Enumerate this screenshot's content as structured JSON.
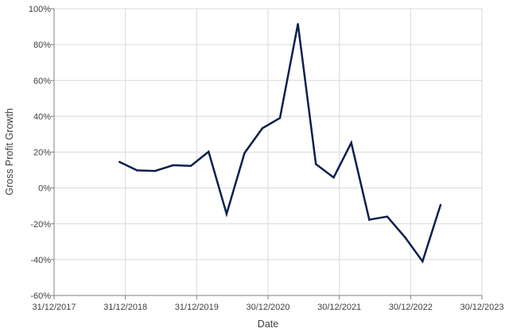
{
  "chart_data": {
    "type": "line",
    "title": "",
    "xlabel": "Date",
    "ylabel": "Gross Profit Growth",
    "xlim": [
      "31/12/2017",
      "30/12/2023"
    ],
    "ylim": [
      -60,
      100
    ],
    "x_ticks": [
      "31/12/2017",
      "31/12/2018",
      "31/12/2019",
      "30/12/2020",
      "30/12/2021",
      "30/12/2022",
      "30/12/2023"
    ],
    "y_ticks": [
      {
        "value": 100,
        "label": "100%"
      },
      {
        "value": 80,
        "label": "80%"
      },
      {
        "value": 60,
        "label": "60%"
      },
      {
        "value": 40,
        "label": "40%"
      },
      {
        "value": 20,
        "label": "20%"
      },
      {
        "value": 0,
        "label": "0%"
      },
      {
        "value": -20,
        "label": "-20%"
      },
      {
        "value": -40,
        "label": "-40%"
      },
      {
        "value": -60,
        "label": "-60%"
      }
    ],
    "grid": true,
    "legend": "none",
    "series_color": "#0c1f4f",
    "x": [
      "2018-12-01",
      "2019-03-01",
      "2019-06-01",
      "2019-09-01",
      "2019-12-01",
      "2020-03-01",
      "2020-06-01",
      "2020-09-01",
      "2020-12-01",
      "2021-03-01",
      "2021-06-01",
      "2021-09-01",
      "2021-12-01",
      "2022-03-01",
      "2022-06-01",
      "2022-09-01",
      "2022-12-01",
      "2023-03-01",
      "2023-06-01"
    ],
    "values": [
      14.5,
      9.8,
      9.5,
      12.7,
      12.3,
      20.2,
      -14.5,
      19.5,
      33.3,
      39.0,
      91.5,
      13.3,
      5.8,
      25.2,
      -17.7,
      -16.0,
      -27.5,
      -41.0,
      -9.5
    ]
  }
}
